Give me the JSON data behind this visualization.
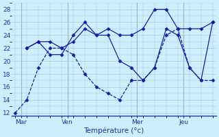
{
  "xlabel": "Température (°c)",
  "background_color": "#cceeff",
  "grid_color": "#aacccc",
  "line_color": "#1a1aaa",
  "ylim": [
    11.5,
    29
  ],
  "xlim": [
    -0.3,
    17.3
  ],
  "yticks": [
    12,
    14,
    16,
    18,
    20,
    22,
    24,
    26,
    28
  ],
  "day_labels": [
    "Mar",
    "Ven",
    "Mer",
    "Jeu"
  ],
  "day_positions": [
    0.5,
    4.5,
    10.5,
    14.5
  ],
  "day_vlines": [
    0.5,
    4.5,
    10.5,
    14.5
  ],
  "series1_x": [
    0,
    1,
    2,
    3,
    4,
    5,
    6,
    7,
    8,
    9,
    10,
    11,
    12,
    13,
    14,
    15,
    16,
    17
  ],
  "series1_y": [
    12,
    14,
    19,
    22,
    22,
    21,
    18,
    16,
    15,
    14,
    17,
    17,
    19,
    24,
    25,
    19,
    17,
    17
  ],
  "series2_x": [
    1,
    2,
    3,
    4,
    5,
    6,
    7,
    8,
    9,
    10,
    11,
    12,
    13,
    14,
    15,
    16,
    17
  ],
  "series2_y": [
    22,
    23,
    21,
    21,
    24,
    26,
    24,
    24,
    20,
    19,
    17,
    19,
    25,
    24,
    19,
    17,
    26
  ],
  "series3_x": [
    1,
    2,
    3,
    4,
    5,
    6,
    7,
    8,
    9,
    10,
    11,
    12,
    13,
    14,
    15,
    16,
    17
  ],
  "series3_y": [
    22,
    23,
    23,
    22,
    23,
    25,
    24,
    25,
    24,
    24,
    25,
    28,
    28,
    25,
    25,
    25,
    26
  ]
}
